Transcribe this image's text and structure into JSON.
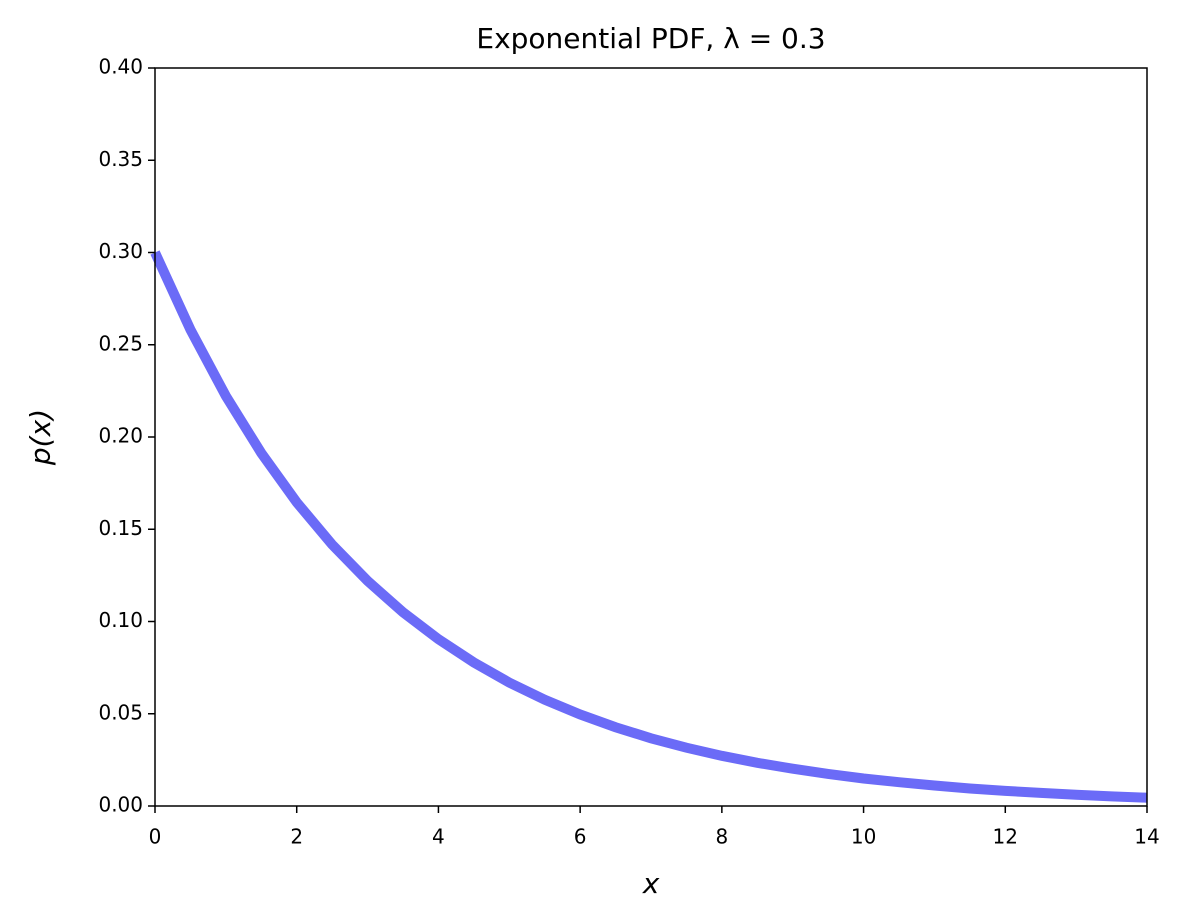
{
  "chart_data": {
    "type": "line",
    "title": "Exponential PDF, λ = 0.3",
    "x_label": "x",
    "y_label": "p(x)",
    "x": [
      0,
      0.5,
      1,
      1.5,
      2,
      2.5,
      3,
      3.5,
      4,
      4.5,
      5,
      5.5,
      6,
      6.5,
      7,
      7.5,
      8,
      8.5,
      9,
      9.5,
      10,
      10.5,
      11,
      11.5,
      12,
      12.5,
      13,
      13.5,
      14
    ],
    "values": [
      0.3,
      0.2582,
      0.2222,
      0.1913,
      0.1646,
      0.1417,
      0.122,
      0.105,
      0.0904,
      0.0778,
      0.0669,
      0.0576,
      0.0496,
      0.0427,
      0.0367,
      0.0316,
      0.0272,
      0.0234,
      0.0202,
      0.0174,
      0.0149,
      0.0129,
      0.0111,
      0.0095,
      0.0082,
      0.0071,
      0.0061,
      0.0052,
      0.0045
    ],
    "color": "#6b6bf7",
    "xlim": [
      0,
      14
    ],
    "xticks": [
      0,
      2,
      4,
      6,
      8,
      10,
      12,
      14
    ],
    "ylim": [
      0,
      0.4
    ],
    "yticks": [
      {
        "value": 0,
        "label": "0.00"
      },
      0.05,
      {
        "value": 0.1,
        "label": "0.10"
      },
      0.15,
      {
        "value": 0.2,
        "label": "0.20"
      },
      0.25,
      {
        "value": 0.3,
        "label": "0.30"
      },
      0.35,
      {
        "value": 0.4,
        "label": "0.40"
      }
    ],
    "grid": false
  }
}
